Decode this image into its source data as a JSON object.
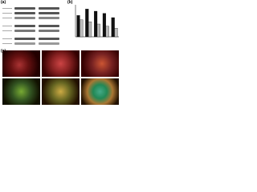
{
  "panels": {
    "a": "(a)",
    "b": "(b)",
    "c": "(c)"
  },
  "chart_data": {
    "type": "bar",
    "categories": [
      null,
      null,
      null,
      null,
      null
    ],
    "series": [
      {
        "color": "#111111",
        "values": [
          1.0,
          1.3,
          1.2,
          1.1,
          0.9
        ]
      },
      {
        "color": "#bbbbbb",
        "values": [
          0.8,
          0.7,
          0.6,
          0.5,
          0.4
        ]
      }
    ],
    "ylim": [
      0,
      1.5
    ]
  }
}
